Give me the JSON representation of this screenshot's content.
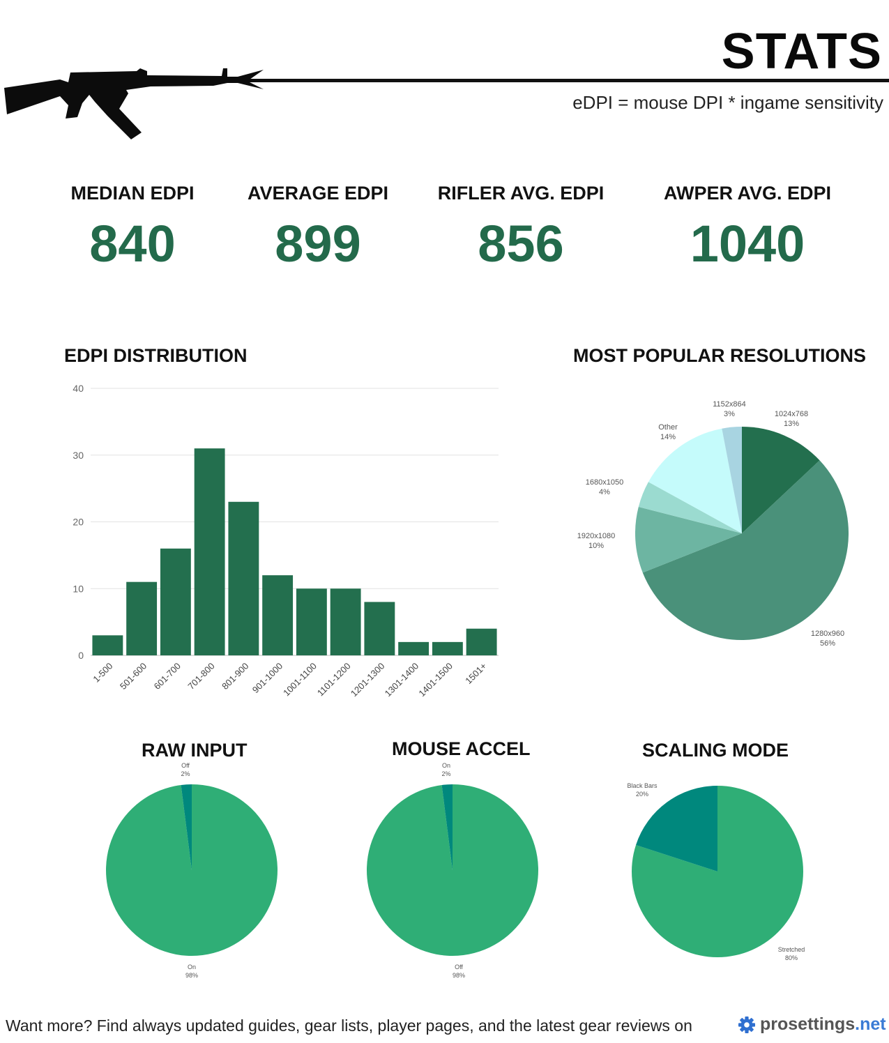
{
  "header": {
    "title": "STATS",
    "formula": "eDPI = mouse DPI * ingame sensitivity"
  },
  "stats": [
    {
      "label": "MEDIAN EDPI",
      "value": "840"
    },
    {
      "label": "AVERAGE EDPI",
      "value": "899"
    },
    {
      "label": "RIFLER AVG. EDPI",
      "value": "856"
    },
    {
      "label": "AWPER AVG. EDPI",
      "value": "1040"
    }
  ],
  "sections": {
    "edpi": "EDPI DISTRIBUTION",
    "resolutions": "MOST POPULAR RESOLUTIONS",
    "raw_input": "RAW INPUT",
    "mouse_accel": "MOUSE ACCEL",
    "scaling": "SCALING MODE"
  },
  "footer": {
    "text": "Want more? Find always updated guides, gear lists, player pages, and the latest gear reviews on",
    "brand_name": "prosettings",
    "brand_tld": ".net"
  },
  "colors": {
    "accent": "#236a4b",
    "bar": "#236f4e",
    "pie_small_green": "#2fae76",
    "pie_small_teal": "#00887d"
  },
  "chart_data": [
    {
      "type": "bar",
      "categories": [
        "1-500",
        "501-600",
        "601-700",
        "701-800",
        "801-900",
        "901-1000",
        "1001-1100",
        "1101-1200",
        "1201-1300",
        "1301-1400",
        "1401-1500",
        "1501+"
      ],
      "values": [
        3,
        11,
        16,
        31,
        23,
        12,
        10,
        10,
        8,
        2,
        2,
        4
      ],
      "ylim": [
        0,
        40
      ],
      "yticks": [
        0,
        10,
        20,
        30,
        40
      ],
      "grid": true
    },
    {
      "type": "pie",
      "slices": [
        {
          "label": "1024x768",
          "value": 13,
          "pct": "13%",
          "color": "#236f4e"
        },
        {
          "label": "1280x960",
          "value": 56,
          "pct": "56%",
          "color": "#4a917a"
        },
        {
          "label": "1920x1080",
          "value": 10,
          "pct": "10%",
          "color": "#6db5a2"
        },
        {
          "label": "1680x1050",
          "value": 4,
          "pct": "4%",
          "color": "#9bdbd0"
        },
        {
          "label": "Other",
          "value": 14,
          "pct": "14%",
          "color": "#c5fbfb"
        },
        {
          "label": "1152x864",
          "value": 3,
          "pct": "3%",
          "color": "#a8d4e1"
        }
      ]
    },
    {
      "type": "pie",
      "slices": [
        {
          "label": "On",
          "value": 98,
          "pct": "98%",
          "color": "#2fae76"
        },
        {
          "label": "Off",
          "value": 2,
          "pct": "2%",
          "color": "#00887d"
        }
      ]
    },
    {
      "type": "pie",
      "slices": [
        {
          "label": "Off",
          "value": 98,
          "pct": "98%",
          "color": "#2fae76"
        },
        {
          "label": "On",
          "value": 2,
          "pct": "2%",
          "color": "#00887d"
        }
      ]
    },
    {
      "type": "pie",
      "slices": [
        {
          "label": "Stretched",
          "value": 80,
          "pct": "80%",
          "color": "#2fae76"
        },
        {
          "label": "Black Bars",
          "value": 20,
          "pct": "20%",
          "color": "#00887d"
        }
      ]
    }
  ]
}
